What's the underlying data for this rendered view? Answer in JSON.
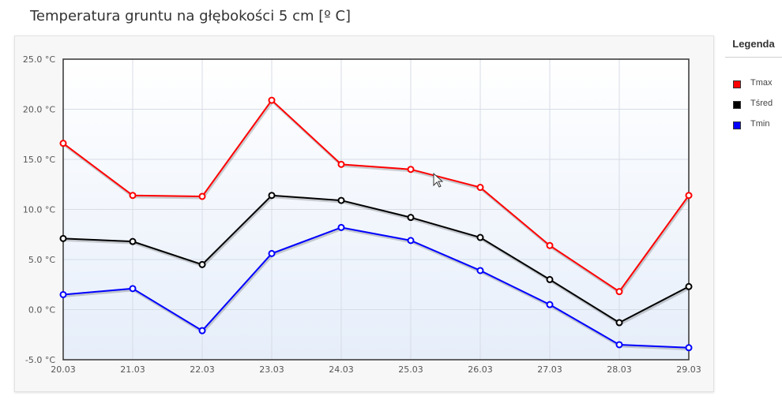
{
  "page": {
    "title": "Temperatura gruntu na głębokości 5 cm [º C]"
  },
  "legend": {
    "title": "Legenda"
  },
  "chart_data": {
    "type": "line",
    "title": "Temperatura gruntu na głębokości 5 cm [º C]",
    "categories": [
      "20.03",
      "21.03",
      "22.03",
      "23.03",
      "24.03",
      "25.03",
      "26.03",
      "27.03",
      "28.03",
      "29.03"
    ],
    "ylim": [
      -5,
      25
    ],
    "yticks": [
      -5,
      0,
      5,
      10,
      15,
      20,
      25
    ],
    "ytick_labels": [
      "-5.0 °C",
      "0.0 °C",
      "5.0 °C",
      "10.0 °C",
      "15.0 °C",
      "20.0 °C",
      "25.0 °C"
    ],
    "grid": true,
    "legend_position": "right",
    "series": [
      {
        "name": "Tmax",
        "color": "#ff0000",
        "values": [
          16.6,
          11.4,
          11.3,
          20.9,
          14.5,
          14.0,
          12.2,
          6.4,
          1.8,
          11.4
        ]
      },
      {
        "name": "Tśred",
        "color": "#000000",
        "values": [
          7.1,
          6.8,
          4.5,
          11.4,
          10.9,
          9.2,
          7.2,
          3.0,
          -1.3,
          2.3
        ]
      },
      {
        "name": "Tmin",
        "color": "#0000ff",
        "values": [
          1.5,
          2.1,
          -2.1,
          5.6,
          8.2,
          6.9,
          3.9,
          0.5,
          -3.5,
          -3.8
        ]
      }
    ]
  }
}
